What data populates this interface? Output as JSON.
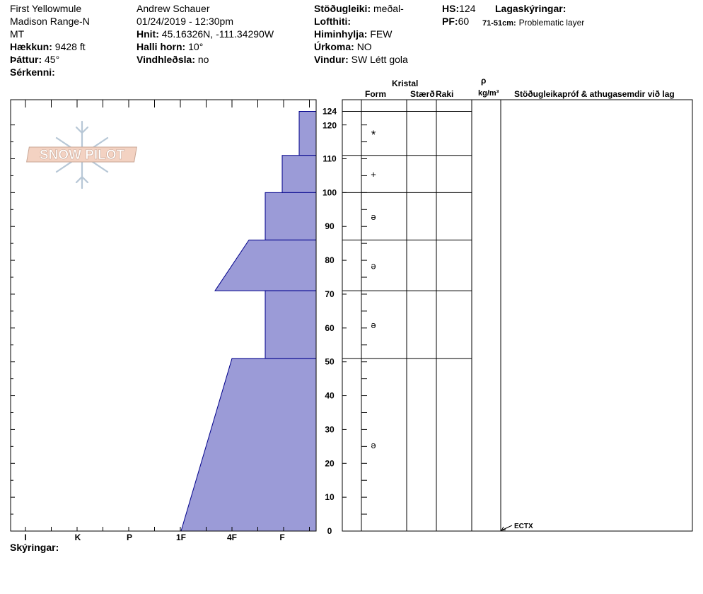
{
  "header": {
    "location": "First Yellowmule",
    "range": "Madison Range-N",
    "state": "MT",
    "elevation_label": "Hækkun:",
    "elevation_value": "9428 ft",
    "aspect_label": "Þáttur:",
    "aspect_value": "45°",
    "specifics_label": "Sérkenni:",
    "observer": "Andrew Schauer",
    "datetime": "01/24/2019 - 12:30pm",
    "coords_label": "Hnit:",
    "coords_value": "45.16326N, -111.34290W",
    "slope_label": "Halli horn:",
    "slope_value": "10°",
    "wind_loading_label": "Vindhleðsla:",
    "wind_loading_value": "no",
    "stability_label": "Stöðugleiki:",
    "stability_value": "meðal-",
    "air_temp_label": "Lofthiti:",
    "sky_label": "Himinhylja:",
    "sky_value": "FEW",
    "precip_label": "Úrkoma:",
    "precip_value": "NO",
    "wind_label": "Vindur:",
    "wind_value": "SW  Létt gola",
    "hs_label": "HS:",
    "hs_value": "124",
    "pf_label": "PF:",
    "pf_value": "60",
    "layer_notes_label": "Lagaskýringar:",
    "layer_note_range": "71-51cm:",
    "layer_note_text": "Problematic layer"
  },
  "columns": {
    "kristal": "Kristal",
    "form": "Form",
    "size": "Stærð",
    "moisture": "Raki",
    "rho": "ρ",
    "density_unit": "kg/m³",
    "tests": "Stöðugleikapróf & athugasemdir við lag"
  },
  "footer": {
    "notes_label": "Skýringar:"
  },
  "logo_text": "SNOW PILOT",
  "colors": {
    "layer_fill": "#9b9bd7",
    "layer_stroke": "#00008b"
  },
  "chart_data": {
    "type": "snow-profile",
    "y_axis": {
      "range": [
        0,
        124
      ],
      "ticks": [
        0,
        10,
        20,
        30,
        40,
        50,
        60,
        70,
        80,
        90,
        100,
        110,
        120,
        124
      ]
    },
    "x_axis": {
      "categories": [
        "I",
        "K",
        "P",
        "1F",
        "4F",
        "F"
      ],
      "reversed": true
    },
    "hardness_layers": [
      {
        "top": 124,
        "bottom": 111,
        "hardness_top": "F-",
        "hardness_bottom": "F-"
      },
      {
        "top": 111,
        "bottom": 100,
        "hardness_top": "F",
        "hardness_bottom": "F"
      },
      {
        "top": 100,
        "bottom": 86,
        "hardness_top": "F+",
        "hardness_bottom": "F+"
      },
      {
        "top": 86,
        "bottom": 71,
        "hardness_top": "4F-",
        "hardness_bottom": "4F+"
      },
      {
        "top": 71,
        "bottom": 51,
        "hardness_top": "F+",
        "hardness_bottom": "F+"
      },
      {
        "top": 51,
        "bottom": 0,
        "hardness_top": "4F",
        "hardness_bottom": "1F"
      }
    ],
    "layer_boundaries": [
      124,
      111,
      100,
      86,
      71,
      51
    ],
    "grain_forms": [
      {
        "height": 117,
        "symbol": "*"
      },
      {
        "height": 105.5,
        "symbol": "+"
      },
      {
        "height": 93,
        "symbol": "ə"
      },
      {
        "height": 78.5,
        "symbol": "ə"
      },
      {
        "height": 61,
        "symbol": "ə"
      },
      {
        "height": 25.5,
        "symbol": "ə"
      }
    ],
    "tests": [
      {
        "height": 0,
        "label": "ECTX"
      }
    ]
  }
}
